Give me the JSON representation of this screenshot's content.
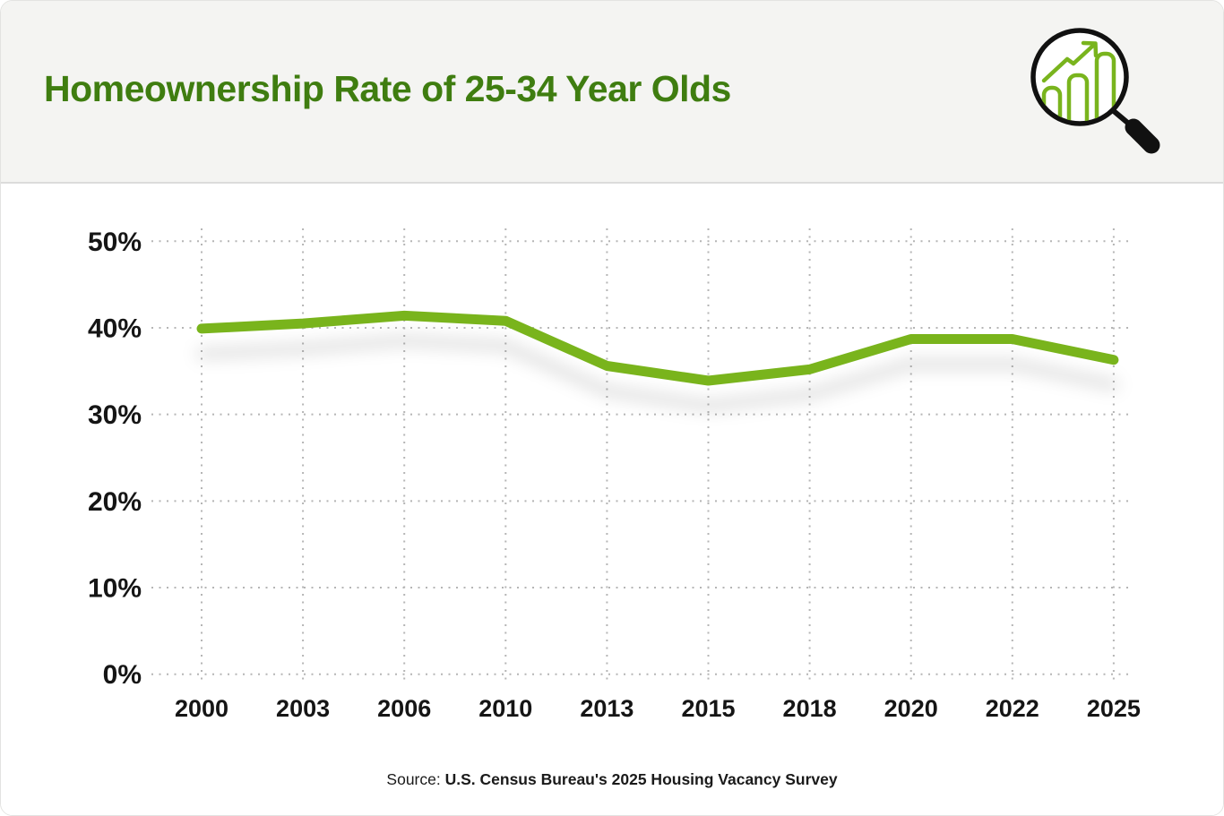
{
  "header": {
    "title": "Homeownership Rate of 25-34 Year Olds",
    "icon": "chart-magnifier"
  },
  "chart_data": {
    "type": "line",
    "title": "Homeownership Rate of 25-34 Year Olds",
    "categories": [
      "2000",
      "2003",
      "2006",
      "2010",
      "2013",
      "2015",
      "2018",
      "2020",
      "2022",
      "2025"
    ],
    "values": [
      39.9,
      40.5,
      41.4,
      40.8,
      35.6,
      33.9,
      35.2,
      38.7,
      38.7,
      36.3
    ],
    "series_name": "Homeownership rate, 25-34 year olds",
    "xlabel": "",
    "ylabel": "",
    "ylim": [
      0,
      50
    ],
    "y_tick_values": [
      0,
      10,
      20,
      30,
      40,
      50
    ],
    "y_tick_labels": [
      "0%",
      "10%",
      "20%",
      "30%",
      "40%",
      "50%"
    ],
    "grid": "dotted both axes",
    "legend": "none",
    "line_color": "#79b41d",
    "line_shadow": true
  },
  "colors": {
    "line_green": "#79b41d",
    "title_green": "#3f7d10",
    "header_background": "#f4f4f2",
    "grid_gray": "#b5b5b5",
    "text_black": "#151515"
  },
  "source": {
    "prefix": "Source: ",
    "text": "U.S. Census Bureau's 2025 Housing Vacancy Survey"
  }
}
